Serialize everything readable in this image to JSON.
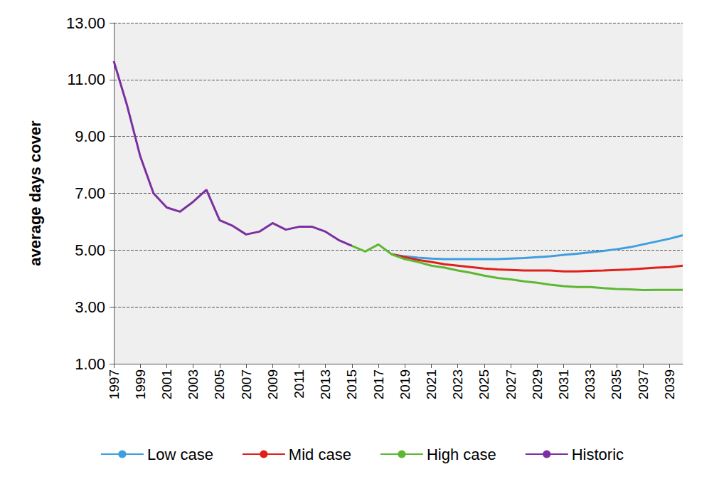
{
  "chart_data": {
    "type": "line",
    "y_label": "average days cover",
    "x": [
      1997,
      1998,
      1999,
      2000,
      2001,
      2002,
      2003,
      2004,
      2005,
      2006,
      2007,
      2008,
      2009,
      2010,
      2011,
      2012,
      2013,
      2014,
      2015,
      2016,
      2017,
      2018,
      2019,
      2020,
      2021,
      2022,
      2023,
      2024,
      2025,
      2026,
      2027,
      2028,
      2029,
      2030,
      2031,
      2032,
      2033,
      2034,
      2035,
      2036,
      2037,
      2038,
      2039,
      2040
    ],
    "xlim": [
      1997,
      2040
    ],
    "xticks": [
      1997,
      1999,
      2001,
      2003,
      2005,
      2007,
      2009,
      2011,
      2013,
      2015,
      2017,
      2019,
      2021,
      2023,
      2025,
      2027,
      2029,
      2031,
      2033,
      2035,
      2037,
      2039
    ],
    "ylim": [
      1,
      13
    ],
    "yticks": [
      {
        "value": 1,
        "label": "1.00"
      },
      {
        "value": 3,
        "label": "3.00"
      },
      {
        "value": 5,
        "label": "5.00"
      },
      {
        "value": 7,
        "label": "7.00"
      },
      {
        "value": 9,
        "label": "9.00"
      },
      {
        "value": 11,
        "label": "11.00"
      },
      {
        "value": 13,
        "label": "13.00"
      }
    ],
    "grid": true,
    "legend": "bottom",
    "series": [
      {
        "name": "Low case",
        "color": "#3d9fe0",
        "values": [
          null,
          null,
          null,
          null,
          null,
          null,
          null,
          null,
          null,
          null,
          null,
          null,
          null,
          null,
          null,
          null,
          null,
          null,
          null,
          null,
          null,
          4.85,
          4.78,
          4.73,
          4.7,
          4.68,
          4.68,
          4.68,
          4.68,
          4.68,
          4.7,
          4.72,
          4.75,
          4.78,
          4.83,
          4.87,
          4.92,
          4.97,
          5.03,
          5.1,
          5.2,
          5.3,
          5.4,
          5.52
        ]
      },
      {
        "name": "Mid case",
        "color": "#e0201b",
        "values": [
          null,
          null,
          null,
          null,
          null,
          null,
          null,
          null,
          null,
          null,
          null,
          null,
          null,
          null,
          null,
          null,
          null,
          null,
          null,
          null,
          null,
          4.85,
          4.75,
          4.65,
          4.58,
          4.5,
          4.45,
          4.4,
          4.35,
          4.32,
          4.3,
          4.28,
          4.28,
          4.28,
          4.25,
          4.25,
          4.27,
          4.28,
          4.3,
          4.32,
          4.35,
          4.38,
          4.4,
          4.45
        ]
      },
      {
        "name": "High case",
        "color": "#5cb832",
        "values": [
          null,
          null,
          null,
          null,
          null,
          null,
          null,
          null,
          null,
          null,
          null,
          null,
          null,
          null,
          null,
          null,
          null,
          null,
          5.15,
          4.95,
          5.2,
          4.85,
          4.68,
          4.58,
          4.45,
          4.38,
          4.28,
          4.2,
          4.1,
          4.02,
          3.97,
          3.9,
          3.85,
          3.78,
          3.73,
          3.7,
          3.7,
          3.66,
          3.63,
          3.62,
          3.59,
          3.6,
          3.6,
          3.6
        ]
      },
      {
        "name": "Historic",
        "color": "#7b2fa0",
        "values": [
          11.65,
          10.1,
          8.3,
          7.0,
          6.5,
          6.35,
          6.7,
          7.12,
          6.05,
          5.85,
          5.55,
          5.65,
          5.95,
          5.72,
          5.82,
          5.82,
          5.65,
          5.35,
          5.15,
          null,
          null,
          null,
          null,
          null,
          null,
          null,
          null,
          null,
          null,
          null,
          null,
          null,
          null,
          null,
          null,
          null,
          null,
          null,
          null,
          null,
          null,
          null,
          null,
          null
        ]
      }
    ]
  }
}
